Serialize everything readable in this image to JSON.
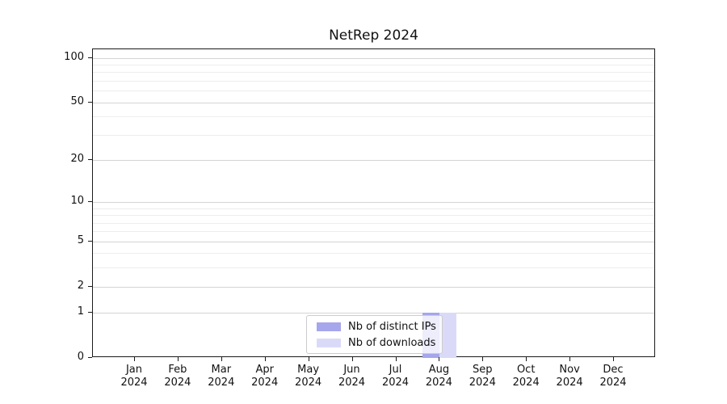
{
  "figure": {
    "title": "NetRep 2024"
  },
  "chart_data": {
    "type": "bar",
    "title": "NetRep 2024",
    "categories": [
      "Jan 2024",
      "Feb 2024",
      "Mar 2024",
      "Apr 2024",
      "May 2024",
      "Jun 2024",
      "Jul 2024",
      "Aug 2024",
      "Sep 2024",
      "Oct 2024",
      "Nov 2024",
      "Dec 2024"
    ],
    "series": [
      {
        "name": "Nb of distinct IPs",
        "color": "#a6a6ec",
        "values": [
          0,
          0,
          0,
          0,
          0,
          0,
          0,
          1,
          0,
          0,
          0,
          0
        ]
      },
      {
        "name": "Nb of downloads",
        "color": "#dadaf8",
        "values": [
          0,
          0,
          0,
          0,
          0,
          0,
          0,
          1,
          0,
          0,
          0,
          0
        ]
      }
    ],
    "xlabel": "",
    "ylabel": "",
    "yscale": "log1p",
    "ylim": [
      0,
      114
    ],
    "y_major_ticks": [
      0,
      1,
      2,
      5,
      10,
      20,
      50,
      100
    ],
    "y_minor_ticks": [
      3,
      4,
      6,
      7,
      8,
      9,
      30,
      40,
      60,
      70,
      80,
      90
    ],
    "grid": "horizontal",
    "legend_position": "lower-center-inside"
  },
  "colors": {
    "major_grid": "#d4d4d4",
    "minor_grid": "#ededed",
    "axis": "#1a1a1a",
    "legend_border": "#cccccc",
    "legend_background": "rgba(255,255,255,0.8)"
  }
}
